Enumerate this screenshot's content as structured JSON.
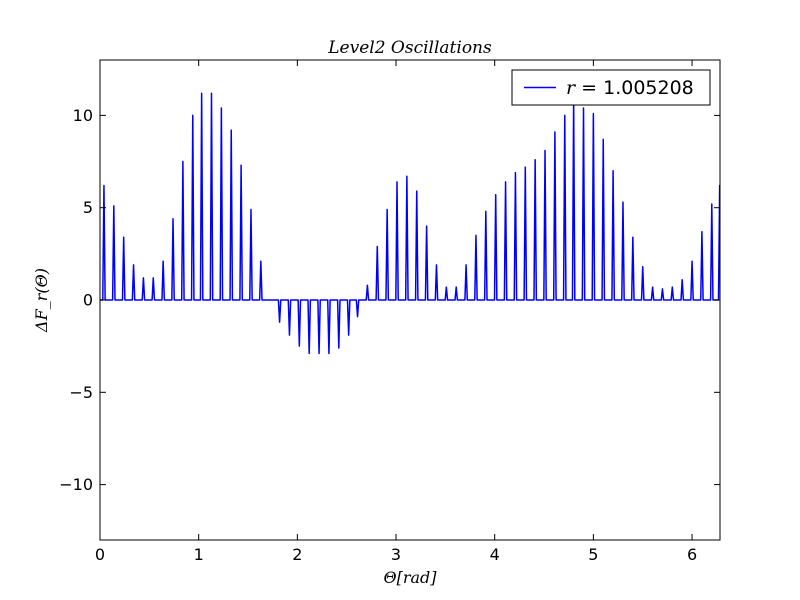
{
  "chart_data": {
    "type": "line",
    "title": "Level2 Oscillations",
    "xlabel": "Θ[rad]",
    "ylabel": "ΔF_r(Θ)",
    "xlim": [
      0,
      6.2832
    ],
    "ylim": [
      -13,
      13
    ],
    "xticks": [
      0,
      1,
      2,
      3,
      4,
      5,
      6
    ],
    "yticks": [
      -10,
      -5,
      0,
      5,
      10
    ],
    "xtick_labels": [
      "0",
      "1",
      "2",
      "3",
      "4",
      "5",
      "6"
    ],
    "ytick_labels": [
      "−10",
      "−5",
      "0",
      "5",
      "10"
    ],
    "grid": false,
    "legend": {
      "position": "top-right",
      "label_var": "r",
      "label_eq": "=",
      "label_value": "1.005208"
    },
    "color": "#0000ff",
    "series": [
      {
        "name": "r=1.005208",
        "spike_half_width": 0.012,
        "peaks": [
          [
            0.04,
            6.2
          ],
          [
            0.14,
            5.1
          ],
          [
            0.24,
            3.4
          ],
          [
            0.34,
            1.9
          ],
          [
            0.44,
            1.2
          ],
          [
            0.54,
            1.2
          ],
          [
            0.64,
            2.1
          ],
          [
            0.74,
            4.4
          ],
          [
            0.84,
            7.5
          ],
          [
            0.94,
            10.0
          ],
          [
            1.03,
            11.2
          ],
          [
            1.13,
            11.2
          ],
          [
            1.23,
            10.4
          ],
          [
            1.33,
            9.2
          ],
          [
            1.43,
            7.3
          ],
          [
            1.53,
            4.9
          ],
          [
            1.63,
            2.1
          ],
          [
            1.82,
            -1.2
          ],
          [
            1.92,
            -1.9
          ],
          [
            2.02,
            -2.5
          ],
          [
            2.12,
            -2.9
          ],
          [
            2.22,
            -2.9
          ],
          [
            2.32,
            -2.9
          ],
          [
            2.42,
            -2.6
          ],
          [
            2.52,
            -1.9
          ],
          [
            2.61,
            -0.9
          ],
          [
            2.71,
            0.8
          ],
          [
            2.81,
            2.9
          ],
          [
            2.91,
            4.9
          ],
          [
            3.01,
            6.4
          ],
          [
            3.11,
            6.7
          ],
          [
            3.21,
            5.9
          ],
          [
            3.31,
            4.0
          ],
          [
            3.41,
            1.9
          ],
          [
            3.51,
            0.7
          ],
          [
            3.61,
            0.7
          ],
          [
            3.71,
            1.9
          ],
          [
            3.81,
            3.5
          ],
          [
            3.91,
            4.8
          ],
          [
            4.01,
            5.7
          ],
          [
            4.11,
            6.4
          ],
          [
            4.21,
            6.9
          ],
          [
            4.31,
            7.2
          ],
          [
            4.41,
            7.6
          ],
          [
            4.51,
            8.1
          ],
          [
            4.61,
            9.1
          ],
          [
            4.71,
            10.0
          ],
          [
            4.8,
            10.9
          ],
          [
            4.9,
            10.4
          ],
          [
            5.0,
            10.1
          ],
          [
            5.1,
            8.7
          ],
          [
            5.2,
            7.0
          ],
          [
            5.3,
            5.3
          ],
          [
            5.4,
            3.4
          ],
          [
            5.5,
            1.8
          ],
          [
            5.6,
            0.7
          ],
          [
            5.7,
            0.6
          ],
          [
            5.8,
            0.7
          ],
          [
            5.9,
            1.1
          ],
          [
            6.0,
            2.1
          ],
          [
            6.1,
            3.7
          ],
          [
            6.2,
            5.2
          ],
          [
            6.28,
            6.2
          ]
        ]
      }
    ]
  }
}
